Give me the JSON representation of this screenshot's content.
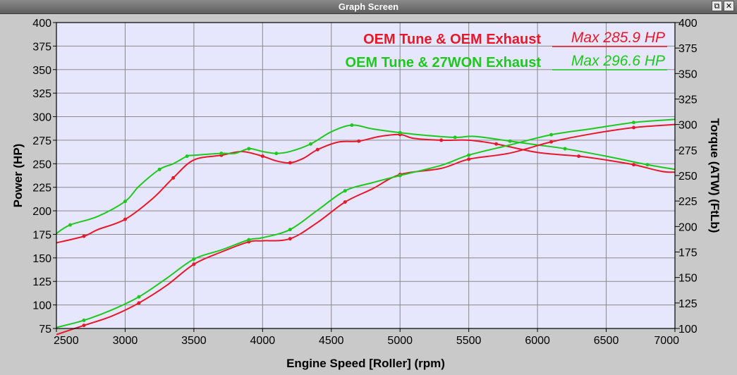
{
  "window": {
    "title": "Graph Screen",
    "restore_glyph": "⧉",
    "close_glyph": "✕"
  },
  "chart_data": {
    "type": "line",
    "title": "",
    "xlabel": "Engine Speed [Roller] (rpm)",
    "ylabel": "Power (HP)",
    "y2label": "Torque (ATW) (FtLb)",
    "xlim": [
      2500,
      7000
    ],
    "ylim": [
      75,
      400
    ],
    "y2lim": [
      100,
      400
    ],
    "xticks": [
      "2500",
      "3000",
      "3500",
      "4000",
      "4500",
      "5000",
      "5500",
      "6000",
      "6500",
      "7000"
    ],
    "yticks": [
      "75",
      "100",
      "125",
      "150",
      "175",
      "200",
      "225",
      "250",
      "275",
      "300",
      "325",
      "350",
      "375",
      "400"
    ],
    "y2ticks": [
      "100",
      "125",
      "150",
      "175",
      "200",
      "225",
      "250",
      "275",
      "300",
      "325",
      "350",
      "375",
      "400"
    ],
    "grid": true,
    "plot_background": "#e6e6fc",
    "legend_position": "top-right",
    "legend": [
      {
        "name": "OEM Tune & OEM Exhaust",
        "max": "Max 285.9 HP",
        "color": "#e8182b"
      },
      {
        "name": "OEM Tune & 27WON Exhaust",
        "max": "Max 296.6 HP",
        "color": "#1ec81e"
      }
    ],
    "series": [
      {
        "name": "OEM Tune & OEM Exhaust",
        "measure": "power",
        "axis": "left",
        "color": "#e8182b",
        "x": [
          2500,
          2700,
          2800,
          3000,
          3200,
          3350,
          3500,
          3700,
          3850,
          4000,
          4100,
          4200,
          4300,
          4400,
          4550,
          4700,
          4850,
          5000,
          5100,
          5300,
          5500,
          5700,
          6000,
          6300,
          6500,
          6700,
          6900,
          7000
        ],
        "y": [
          166,
          173,
          180,
          191,
          213,
          235,
          254,
          259,
          263,
          258,
          253,
          251,
          256,
          265,
          273,
          274,
          279,
          281,
          277,
          275,
          275,
          271,
          262,
          258,
          254,
          249,
          242,
          241
        ]
      },
      {
        "name": "OEM Tune & 27WON Exhaust",
        "measure": "power",
        "axis": "left",
        "color": "#1ec81e",
        "x": [
          2500,
          2600,
          2800,
          3000,
          3100,
          3250,
          3350,
          3450,
          3500,
          3700,
          3800,
          3900,
          4000,
          4100,
          4200,
          4350,
          4500,
          4650,
          4800,
          5000,
          5200,
          5400,
          5550,
          5800,
          6000,
          6200,
          6500,
          6800,
          7000
        ],
        "y": [
          176,
          185,
          194,
          210,
          226,
          244,
          250,
          258,
          259,
          261,
          261,
          266,
          263,
          261,
          263,
          271,
          284,
          291,
          287,
          283,
          280,
          278,
          279,
          274,
          270,
          266,
          258,
          249,
          244
        ]
      },
      {
        "name": "OEM Tune & OEM Exhaust",
        "measure": "torque",
        "axis": "right",
        "color": "#e8182b",
        "x": [
          2500,
          2700,
          2900,
          3100,
          3300,
          3500,
          3700,
          3900,
          4000,
          4200,
          4400,
          4600,
          4800,
          5000,
          5300,
          5500,
          5800,
          6100,
          6400,
          6700,
          7000
        ],
        "y": [
          94,
          103,
          112,
          125,
          142,
          163,
          175,
          185,
          186,
          188,
          204,
          224,
          237,
          251,
          257,
          266,
          272,
          283,
          291,
          297,
          300
        ]
      },
      {
        "name": "OEM Tune & 27WON Exhaust",
        "measure": "torque",
        "axis": "right",
        "color": "#1ec81e",
        "x": [
          2500,
          2700,
          2900,
          3100,
          3300,
          3500,
          3700,
          3900,
          4000,
          4200,
          4400,
          4600,
          4800,
          5000,
          5300,
          5500,
          5800,
          6100,
          6400,
          6700,
          7000
        ],
        "y": [
          101,
          108,
          118,
          131,
          149,
          168,
          177,
          187,
          189,
          197,
          216,
          235,
          243,
          250,
          260,
          270,
          280,
          290,
          296,
          302,
          305
        ]
      }
    ]
  }
}
